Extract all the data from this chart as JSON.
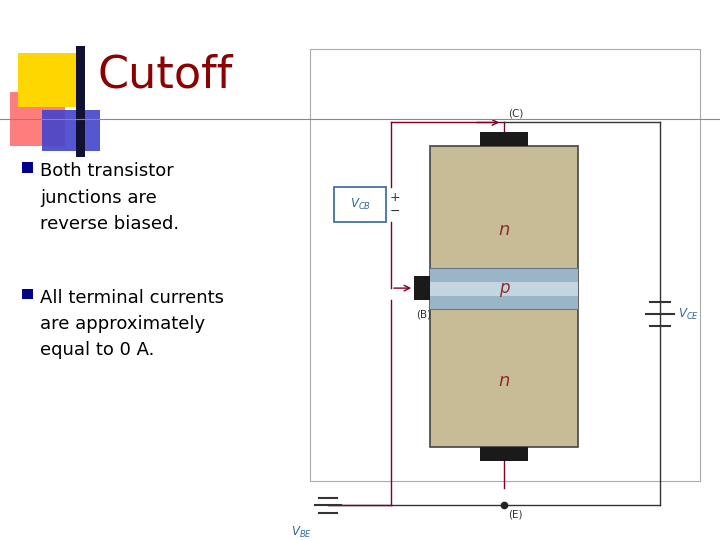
{
  "title": "Cutoff",
  "title_color": "#8B0000",
  "title_fontsize": 32,
  "background_color": "#FFFFFF",
  "bullet_points": [
    "Both transistor\njunctions are\nreverse biased.",
    "All terminal currents\nare approximately\nequal to 0 A."
  ],
  "bullet_color": "#00008B",
  "bullet_fontsize": 13,
  "transistor": {
    "body_color": "#C8BC96",
    "p_region_color": "#9BB5C8",
    "p_region_light": "#C5D5DF",
    "wire_color": "#800020",
    "label_color_np": "#8B3030",
    "label_color_vcb": "#336699",
    "label_color_vce": "#336699",
    "label_color_vbe": "#336699"
  },
  "header_line_color": "#888888",
  "icon_yellow": "#FFD700",
  "icon_red": "#FF6666",
  "icon_blue": "#4444CC",
  "diag_border_color": "#AAAAAA",
  "diag_border_lw": 0.8
}
